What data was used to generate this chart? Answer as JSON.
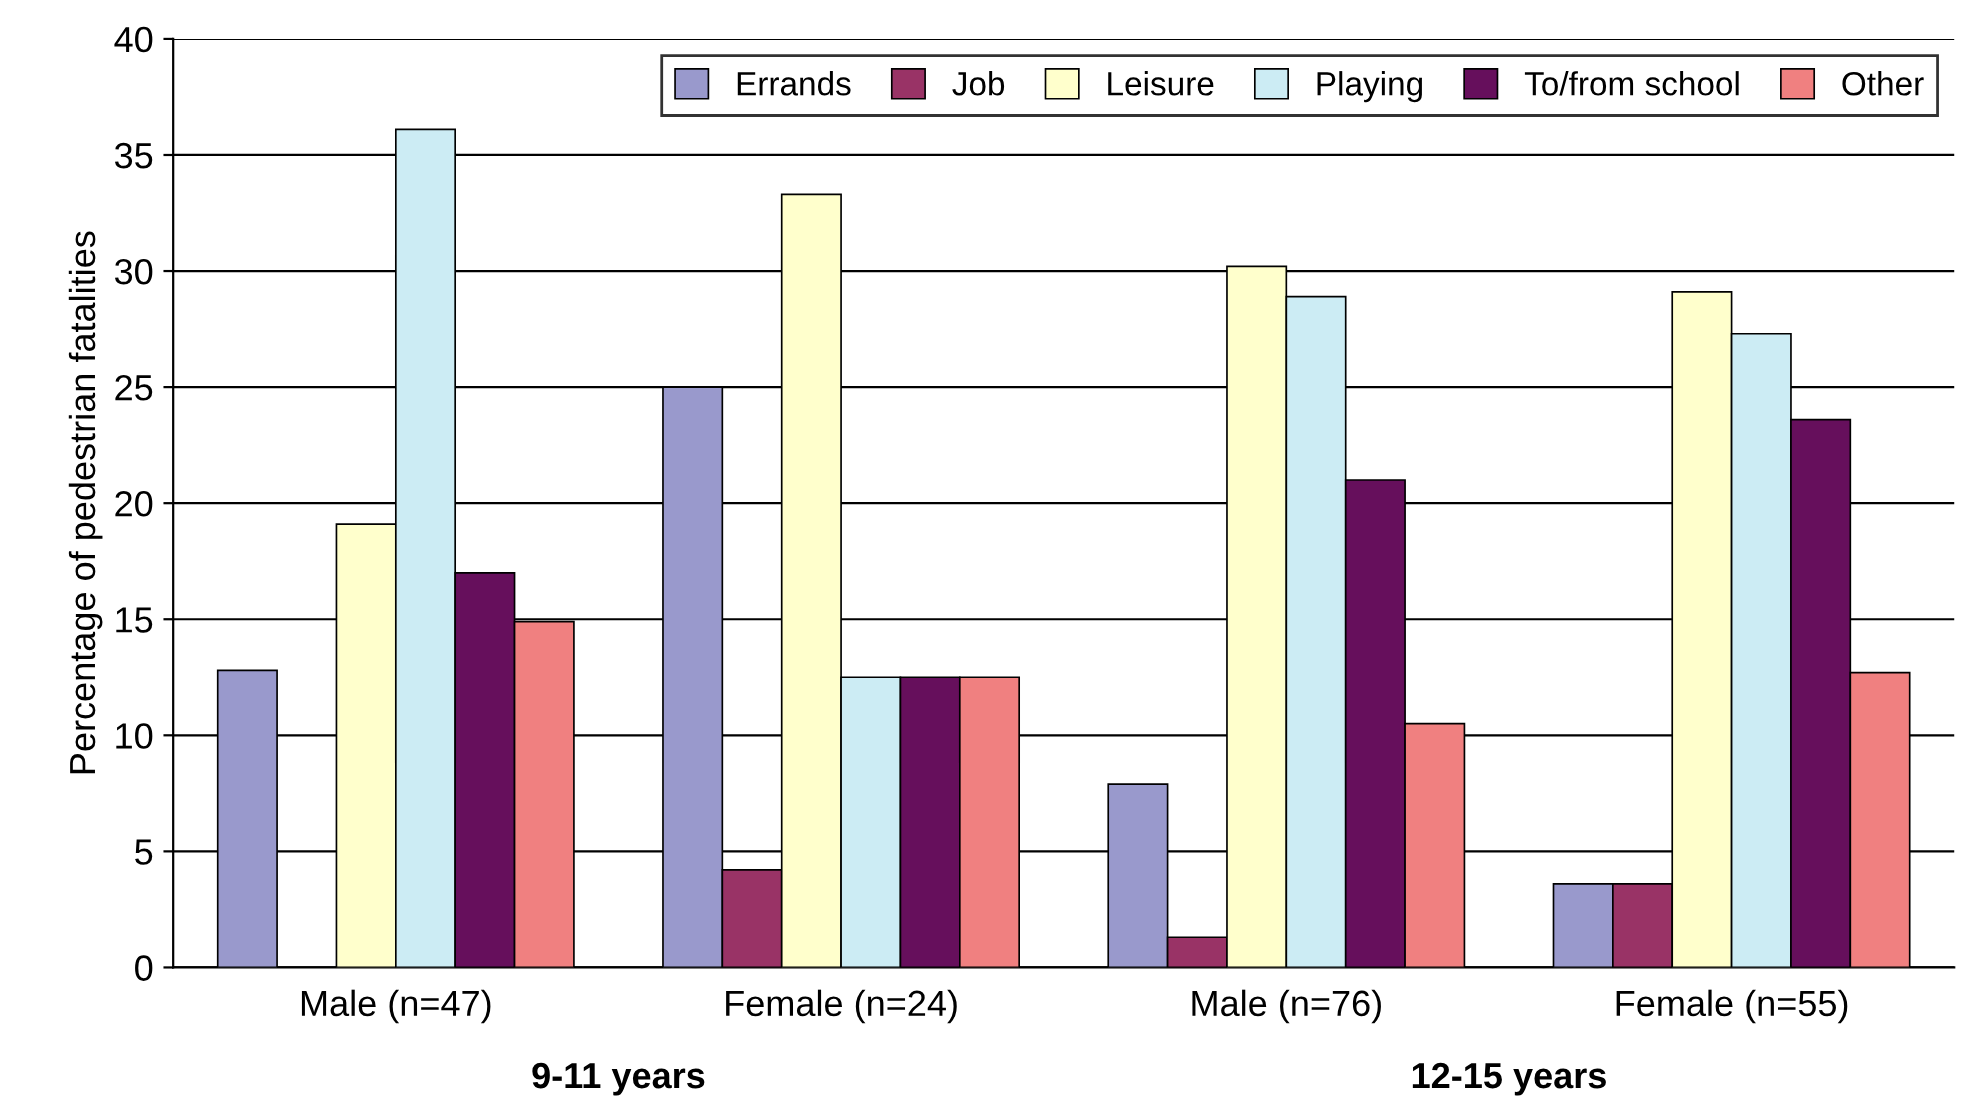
{
  "chart_data": {
    "type": "bar",
    "ylabel": "Percentage of pedestrian fatalities",
    "categories": [
      "Male (n=47)",
      "Female (n=24)",
      "Male (n=76)",
      "Female (n=55)"
    ],
    "series": [
      {
        "name": "Errands",
        "color": "#9999cc",
        "values": [
          12.8,
          25.0,
          7.9,
          3.6
        ]
      },
      {
        "name": "Job",
        "color": "#993366",
        "values": [
          null,
          4.2,
          1.3,
          3.6
        ]
      },
      {
        "name": "Leisure",
        "color": "#ffffcc",
        "values": [
          19.1,
          33.3,
          30.2,
          29.1
        ]
      },
      {
        "name": "Playing",
        "color": "#ccecf4",
        "values": [
          36.1,
          12.5,
          28.9,
          27.3
        ]
      },
      {
        "name": "To/from school",
        "color": "#660f5c",
        "values": [
          17.0,
          12.5,
          21.0,
          23.6
        ]
      },
      {
        "name": "Other",
        "color": "#f08080",
        "values": [
          14.9,
          12.5,
          10.5,
          12.7
        ]
      }
    ],
    "annotations": [
      "9-11 years",
      "12-15 years"
    ],
    "ylim": [
      0,
      40
    ],
    "yticks": [
      0,
      5,
      10,
      15,
      20,
      25,
      30,
      35,
      40
    ],
    "grid": "y",
    "legend": "top right"
  }
}
